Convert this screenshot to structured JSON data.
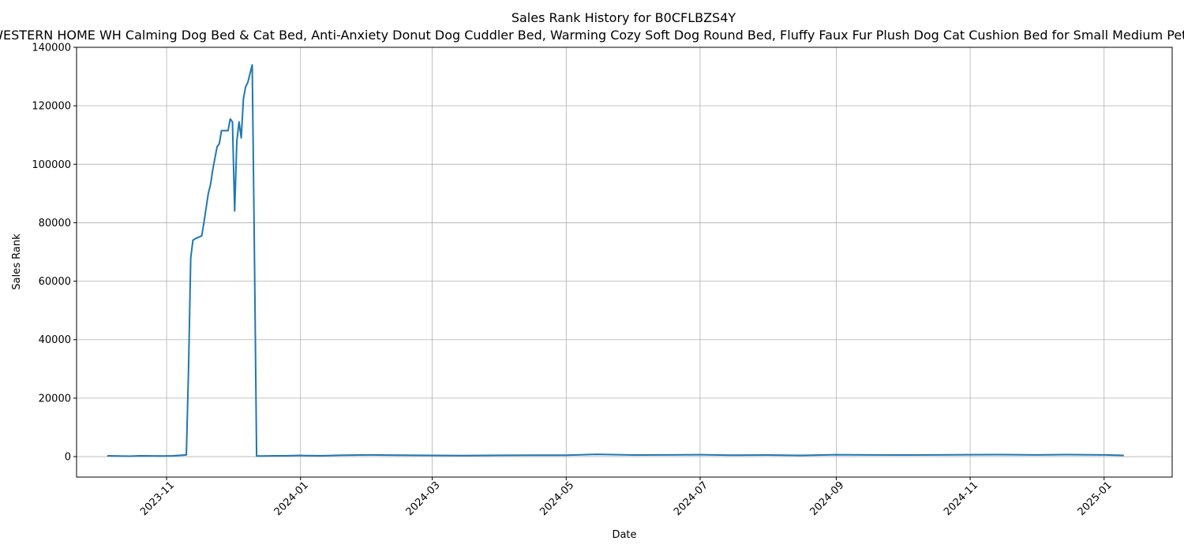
{
  "chart_data": {
    "type": "line",
    "title": "Sales Rank History for B0CFLBZS4Y",
    "subtitle": "WESTERN HOME WH Calming Dog Bed & Cat Bed, Anti-Anxiety Donut Dog Cuddler Bed, Warming Cozy Soft Dog Round Bed, Fluffy Faux Fur Plush Dog Cat Cushion Bed for Small Medium Pets",
    "xlabel": "Date",
    "ylabel": "Sales Rank",
    "x_ticks": [
      "2023-11",
      "2024-01",
      "2024-03",
      "2024-05",
      "2024-07",
      "2024-09",
      "2024-11",
      "2025-01"
    ],
    "y_ticks": [
      0,
      20000,
      40000,
      60000,
      80000,
      100000,
      120000,
      140000
    ],
    "xlim": [
      "2023-09-21",
      "2025-02-01"
    ],
    "ylim": [
      -7000,
      140000
    ],
    "grid": true,
    "line_color": "#1f77b4",
    "series": [
      {
        "x": [
          "2023-10-05",
          "2023-10-10",
          "2023-10-15",
          "2023-10-20",
          "2023-10-25",
          "2023-10-30",
          "2023-11-04",
          "2023-11-08",
          "2023-11-10",
          "2023-11-11",
          "2023-11-12",
          "2023-11-13",
          "2023-11-14",
          "2023-11-17",
          "2023-11-18",
          "2023-11-19",
          "2023-11-20",
          "2023-11-21",
          "2023-11-22",
          "2023-11-23",
          "2023-11-24",
          "2023-11-25",
          "2023-11-26",
          "2023-11-27",
          "2023-11-28",
          "2023-11-29",
          "2023-11-30",
          "2023-12-01",
          "2023-12-02",
          "2023-12-03",
          "2023-12-04",
          "2023-12-05",
          "2023-12-06",
          "2023-12-07",
          "2023-12-08",
          "2023-12-09",
          "2023-12-10",
          "2023-12-11",
          "2023-12-12",
          "2023-12-15",
          "2023-12-20",
          "2023-12-25",
          "2024-01-01",
          "2024-01-10",
          "2024-01-20",
          "2024-02-01",
          "2024-02-15",
          "2024-03-01",
          "2024-03-15",
          "2024-04-01",
          "2024-04-15",
          "2024-05-01",
          "2024-05-15",
          "2024-06-01",
          "2024-06-15",
          "2024-07-01",
          "2024-07-15",
          "2024-08-01",
          "2024-08-15",
          "2024-09-01",
          "2024-09-15",
          "2024-10-01",
          "2024-10-15",
          "2024-11-01",
          "2024-11-15",
          "2024-12-01",
          "2024-12-15",
          "2025-01-01",
          "2025-01-10"
        ],
        "y": [
          300,
          200,
          150,
          300,
          250,
          200,
          300,
          500,
          600,
          30000,
          68000,
          74000,
          74500,
          75500,
          80000,
          85000,
          90000,
          93000,
          98000,
          102000,
          106000,
          107000,
          111500,
          111500,
          111500,
          111500,
          115500,
          114500,
          84000,
          108000,
          114500,
          109000,
          122500,
          126500,
          128000,
          131000,
          134000,
          70000,
          200,
          200,
          300,
          300,
          400,
          300,
          500,
          600,
          500,
          400,
          350,
          450,
          500,
          500,
          800,
          550,
          600,
          650,
          500,
          550,
          400,
          650,
          600,
          550,
          600,
          650,
          700,
          600,
          700,
          600,
          400
        ]
      }
    ]
  }
}
